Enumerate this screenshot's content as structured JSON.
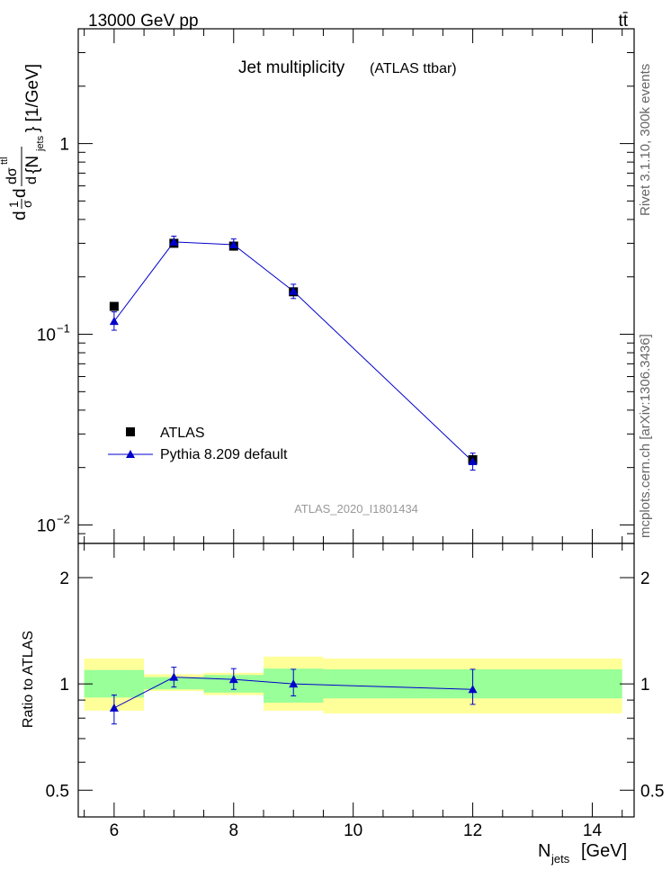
{
  "header": {
    "energy_label": "13000 GeV pp",
    "process_label": "tt̄"
  },
  "side_labels": {
    "rivet": "Rivet 3.1.10,  300k events",
    "mcplots": "mcplots.cern.ch [arXiv:1306.3436]"
  },
  "colors": {
    "mc": "#0000cc",
    "data": "#000000",
    "band_inner": "#99ff99",
    "band_outer": "#ffff99",
    "watermark": "#999999"
  },
  "chart_data": [
    {
      "type": "scatter",
      "title": "Jet multiplicity",
      "subtitle": "(ATLAS ttbar)",
      "ylabel": "d¹/σ dσ^ttl/d{N_jets} [1/GeV]",
      "ylabel_parts": {
        "d1": "d",
        "n1": "1",
        "s1": "σ",
        "d2": "d",
        "num": "dσ",
        "num_sup": "ttl",
        "den_d": "d",
        "den_open": "{N",
        "den_sub": "jets",
        "den_close": "} [1/GeV]"
      },
      "y_scale": "log",
      "ylim": [
        0.008,
        4
      ],
      "xlim": [
        5.4,
        14.7
      ],
      "y_ticks": [
        {
          "value": 1,
          "label": "1"
        },
        {
          "value": 0.1,
          "label": "10",
          "sup": "−1"
        },
        {
          "value": 0.01,
          "label": "10",
          "sup": "−2"
        }
      ],
      "watermark": "ATLAS_2020_I1801434",
      "legend": {
        "placement": "lower-left",
        "entries": [
          "ATLAS",
          "Pythia 8.209 default"
        ]
      },
      "series": [
        {
          "name": "ATLAS",
          "marker": "square",
          "x": [
            6,
            7,
            8,
            9,
            12
          ],
          "y": [
            0.14,
            0.3,
            0.29,
            0.167,
            0.022
          ]
        },
        {
          "name": "Pythia 8.209 default",
          "marker": "triangle",
          "x": [
            6,
            7,
            8,
            9,
            12
          ],
          "y": [
            0.117,
            0.305,
            0.295,
            0.168,
            0.0215
          ],
          "yerr": [
            [
              0.105,
              0.131
            ],
            [
              0.288,
              0.327
            ],
            [
              0.276,
              0.316
            ],
            [
              0.154,
              0.183
            ],
            [
              0.0194,
              0.0238
            ]
          ]
        }
      ]
    },
    {
      "type": "scatter",
      "ylabel": "Ratio to ATLAS",
      "xlabel": "N",
      "xlabel_sub": "jets",
      "xlabel_unit": "[GeV]",
      "y_scale": "log",
      "ylim": [
        0.42,
        2.5
      ],
      "xlim": [
        5.4,
        14.7
      ],
      "x_ticks": [
        6,
        8,
        10,
        12,
        14
      ],
      "y_ticks": [
        {
          "value": 0.5,
          "label": "0.5"
        },
        {
          "value": 1,
          "label": "1"
        },
        {
          "value": 2,
          "label": "2"
        }
      ],
      "bands": [
        {
          "x": [
            5.5,
            6.5
          ],
          "inner": [
            0.915,
            1.095
          ],
          "outer": [
            0.84,
            1.18
          ]
        },
        {
          "x": [
            6.5,
            7.5
          ],
          "inner": [
            0.965,
            1.045
          ],
          "outer": [
            0.955,
            1.065
          ]
        },
        {
          "x": [
            7.5,
            8.5
          ],
          "inner": [
            0.945,
            1.06
          ],
          "outer": [
            0.93,
            1.075
          ]
        },
        {
          "x": [
            8.5,
            9.5
          ],
          "inner": [
            0.885,
            1.105
          ],
          "outer": [
            0.84,
            1.195
          ]
        },
        {
          "x": [
            9.5,
            14.5
          ],
          "inner": [
            0.91,
            1.1
          ],
          "outer": [
            0.825,
            1.18
          ]
        }
      ],
      "series": [
        {
          "name": "Pythia 8.209 default",
          "x": [
            6,
            7,
            8,
            9,
            12
          ],
          "y": [
            0.855,
            1.045,
            1.03,
            1.0,
            0.965
          ],
          "yerr": [
            [
              0.77,
              0.93
            ],
            [
              0.98,
              1.115
            ],
            [
              0.965,
              1.105
            ],
            [
              0.925,
              1.1
            ],
            [
              0.875,
              1.1
            ]
          ]
        }
      ]
    }
  ]
}
